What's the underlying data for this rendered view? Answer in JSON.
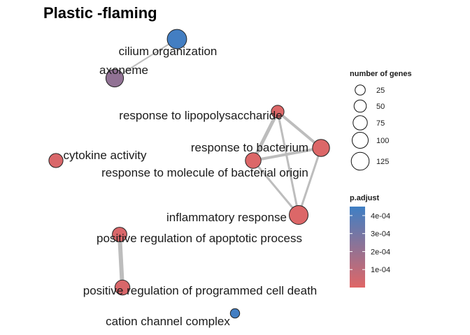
{
  "title": "Plastic -flaming",
  "chart_data": {
    "type": "network",
    "title": "Plastic -flaming",
    "nodes": [
      {
        "id": "cilium_organization",
        "label": "cilium organization",
        "genes": 70,
        "p_adjust": 0.00044
      },
      {
        "id": "axoneme",
        "label": "axoneme",
        "genes": 55,
        "p_adjust": 0.00022
      },
      {
        "id": "response_to_lps",
        "label": "response to lipopolysaccharide",
        "genes": 22,
        "p_adjust": 1e-05
      },
      {
        "id": "response_to_bacterium",
        "label": "response to bacterium",
        "genes": 50,
        "p_adjust": 1e-05
      },
      {
        "id": "response_to_molecule_bacterial",
        "label": "response to molecule of bacterial origin",
        "genes": 40,
        "p_adjust": 1e-05
      },
      {
        "id": "cytokine_activity",
        "label": "cytokine activity",
        "genes": 30,
        "p_adjust": 2e-05
      },
      {
        "id": "inflammatory_response",
        "label": "inflammatory response",
        "genes": 65,
        "p_adjust": 1e-05
      },
      {
        "id": "pos_reg_apoptotic",
        "label": "positive regulation of apoptotic process",
        "genes": 32,
        "p_adjust": 2e-05
      },
      {
        "id": "pos_reg_programmed_cell_death",
        "label": "positive regulation of programmed cell death",
        "genes": 35,
        "p_adjust": 2e-05
      },
      {
        "id": "cation_channel_complex",
        "label": "cation channel complex",
        "genes": 8,
        "p_adjust": 0.00044
      }
    ],
    "edges": [
      {
        "source": "cilium_organization",
        "target": "axoneme",
        "weight": 2
      },
      {
        "source": "response_to_lps",
        "target": "response_to_bacterium",
        "weight": 4
      },
      {
        "source": "response_to_lps",
        "target": "response_to_molecule_bacterial",
        "weight": 5
      },
      {
        "source": "response_to_lps",
        "target": "inflammatory_response",
        "weight": 3
      },
      {
        "source": "response_to_bacterium",
        "target": "response_to_molecule_bacterial",
        "weight": 4
      },
      {
        "source": "response_to_bacterium",
        "target": "inflammatory_response",
        "weight": 3
      },
      {
        "source": "response_to_molecule_bacterial",
        "target": "inflammatory_response",
        "weight": 3
      },
      {
        "source": "pos_reg_apoptotic",
        "target": "pos_reg_programmed_cell_death",
        "weight": 6
      }
    ],
    "size_legend": {
      "title": "number of genes",
      "items": [
        {
          "value": 25,
          "label": "25"
        },
        {
          "value": 50,
          "label": "50"
        },
        {
          "value": 75,
          "label": "75"
        },
        {
          "value": 100,
          "label": "100"
        },
        {
          "value": 125,
          "label": "125"
        }
      ]
    },
    "color_legend": {
      "title": "p.adjust",
      "range": [
        0,
        0.00045
      ],
      "ticks": [
        {
          "value": 0.0001,
          "label": "1e-04"
        },
        {
          "value": 0.0002,
          "label": "2e-04"
        },
        {
          "value": 0.0003,
          "label": "3e-04"
        },
        {
          "value": 0.0004,
          "label": "4e-04"
        }
      ],
      "low_color": "#e06666",
      "high_color": "#3f7fc4"
    }
  }
}
